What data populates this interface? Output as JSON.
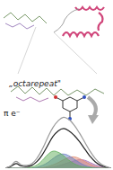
{
  "labels": {
    "octarepeat": "„octarepeat\"",
    "spectrum": "π e⁻"
  },
  "chart_data": {
    "type": "line",
    "tick_labels": false,
    "grid": false,
    "x": [
      0,
      5,
      10,
      15,
      20,
      25,
      30,
      35,
      40,
      45,
      50,
      55,
      60,
      65,
      70,
      75,
      80,
      85,
      90,
      95,
      100
    ],
    "xlim": [
      0,
      100
    ],
    "ylim": [
      0,
      100
    ],
    "series": [
      {
        "color": "#9a9a9a",
        "line_style": "solid",
        "values": [
          0,
          4,
          12,
          6,
          5,
          8,
          18,
          34,
          54,
          72,
          84,
          90,
          86,
          76,
          62,
          46,
          30,
          17,
          8,
          3,
          0
        ]
      },
      {
        "color": "#222222",
        "line_style": "solid",
        "values": [
          0,
          3,
          8,
          4,
          3,
          5,
          12,
          24,
          40,
          56,
          66,
          70,
          66,
          58,
          47,
          34,
          21,
          11,
          5,
          2,
          0
        ]
      },
      {
        "color": "#5fae5a",
        "line_style": "area",
        "values": [
          0,
          0,
          0,
          0,
          0,
          2,
          6,
          14,
          24,
          30,
          28,
          22,
          14,
          8,
          4,
          2,
          1,
          0,
          0,
          0,
          0
        ]
      },
      {
        "color": "#6a7fc4",
        "line_style": "area",
        "values": [
          0,
          0,
          0,
          0,
          0,
          0,
          2,
          5,
          10,
          17,
          23,
          25,
          22,
          16,
          10,
          5,
          2,
          1,
          0,
          0,
          0
        ]
      },
      {
        "color": "#e08a70",
        "line_style": "area",
        "values": [
          0,
          0,
          0,
          0,
          0,
          0,
          0,
          1,
          3,
          6,
          10,
          15,
          19,
          20,
          17,
          12,
          7,
          3,
          1,
          0,
          0
        ]
      },
      {
        "color": "#a46bb0",
        "line_style": "area",
        "values": [
          0,
          0,
          0,
          0,
          0,
          0,
          0,
          0,
          1,
          2,
          4,
          7,
          10,
          13,
          15,
          14,
          10,
          6,
          3,
          1,
          0
        ]
      }
    ]
  }
}
